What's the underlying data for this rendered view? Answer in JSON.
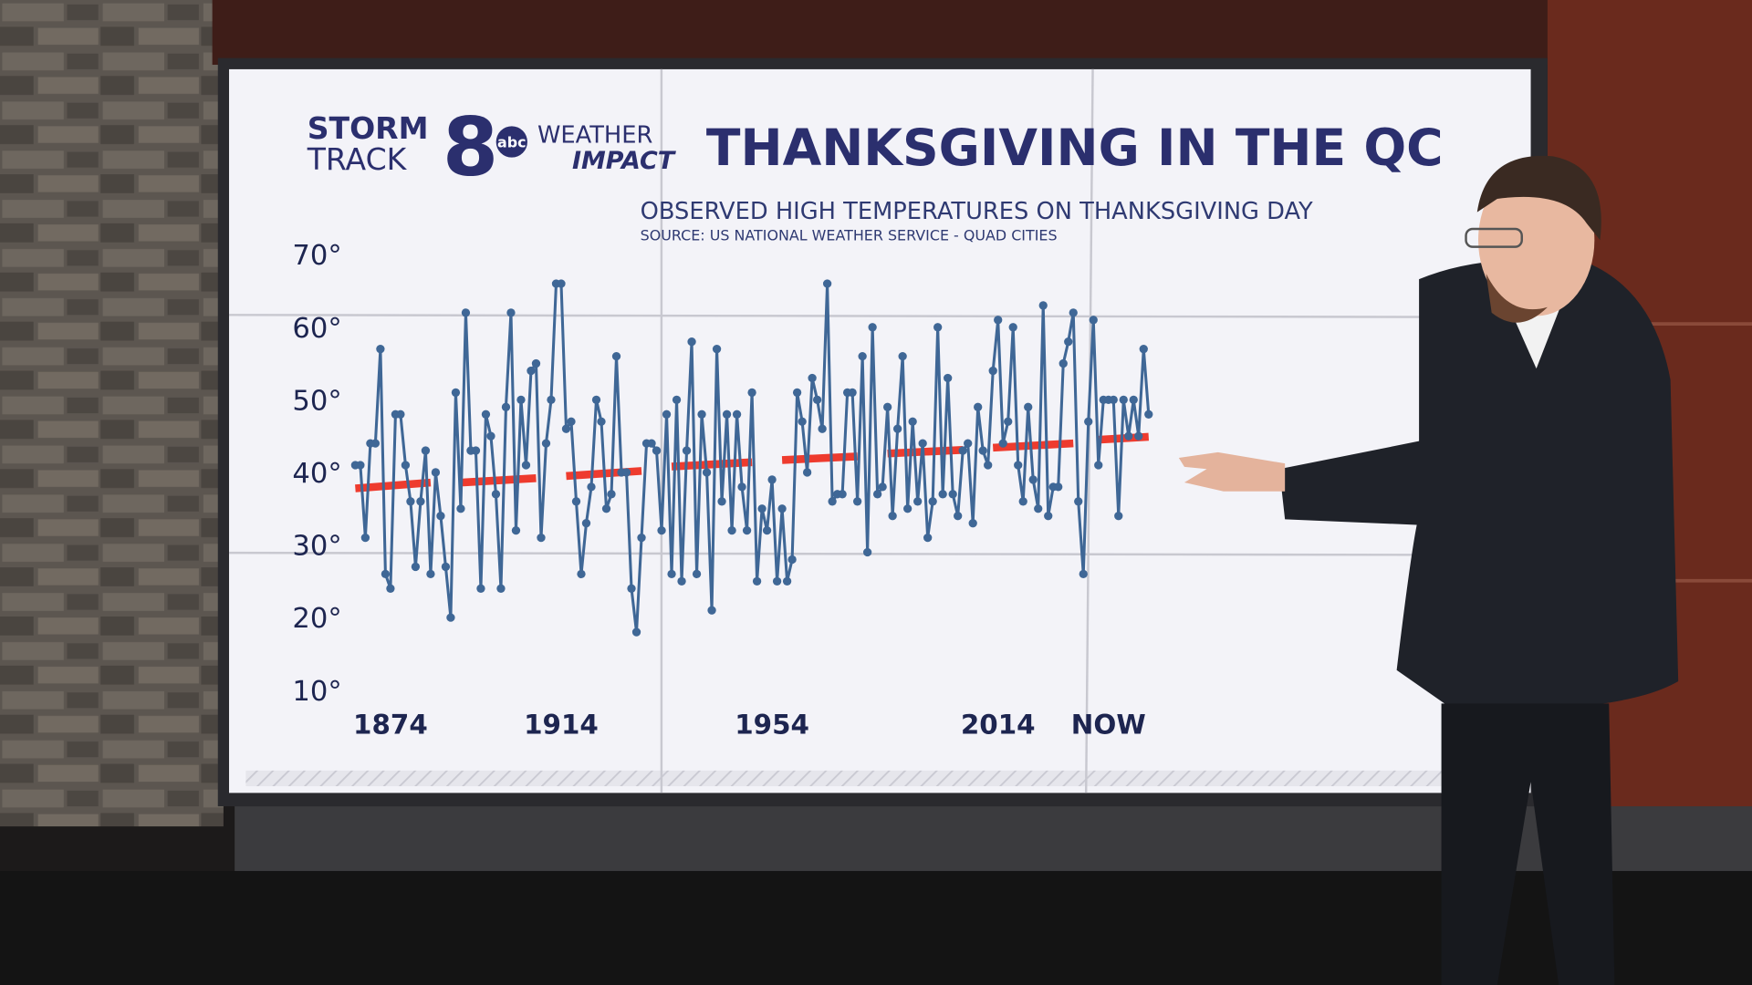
{
  "logo": {
    "storm": "STORM",
    "track": "TRACK",
    "eight": "8",
    "network": "abc",
    "weather": "WEATHER",
    "impact": "IMPACT"
  },
  "chart_data": {
    "type": "line",
    "title": "THANKSGIVING IN THE QC",
    "subtitle": "OBSERVED HIGH TEMPERATURES ON THANKSGIVING DAY",
    "source": "SOURCE: US NATIONAL WEATHER SERVICE - QUAD CITIES",
    "categories": [
      null,
      null,
      null,
      null,
      null,
      null,
      null,
      "1874",
      null,
      null,
      null,
      null,
      null,
      null,
      null,
      null,
      null,
      null,
      null,
      null,
      null,
      null,
      null,
      null,
      null,
      null,
      null,
      null,
      null,
      null,
      null,
      null,
      null,
      null,
      null,
      null,
      null,
      null,
      null,
      null,
      null,
      "1914",
      null,
      null,
      null,
      null,
      null,
      null,
      null,
      null,
      null,
      null,
      null,
      null,
      null,
      null,
      null,
      null,
      null,
      null,
      null,
      null,
      null,
      null,
      null,
      null,
      null,
      null,
      null,
      null,
      null,
      null,
      null,
      null,
      null,
      null,
      null,
      null,
      null,
      null,
      null,
      null,
      null,
      "1954",
      null,
      null,
      null,
      null,
      null,
      null,
      null,
      null,
      null,
      null,
      null,
      null,
      null,
      null,
      null,
      null,
      null,
      null,
      null,
      null,
      null,
      null,
      null,
      null,
      null,
      null,
      null,
      null,
      null,
      null,
      null,
      null,
      null,
      null,
      null,
      null,
      null,
      null,
      null,
      null,
      null,
      null,
      null,
      null,
      "2014",
      null,
      null,
      null,
      null,
      null,
      null,
      null,
      null,
      null,
      null,
      null,
      null,
      null,
      null,
      null,
      null,
      null,
      null,
      null,
      null,
      null,
      "NOW",
      null,
      null,
      null,
      null,
      null,
      null,
      null,
      null
    ],
    "values": [
      41,
      41,
      31,
      44,
      44,
      57,
      26,
      24,
      48,
      48,
      41,
      36,
      27,
      36,
      43,
      26,
      40,
      34,
      27,
      20,
      51,
      35,
      62,
      43,
      43,
      24,
      48,
      45,
      37,
      24,
      49,
      62,
      32,
      50,
      41,
      54,
      55,
      31,
      44,
      50,
      66,
      66,
      46,
      47,
      36,
      26,
      33,
      38,
      50,
      47,
      35,
      37,
      56,
      40,
      40,
      24,
      18,
      31,
      44,
      44,
      43,
      32,
      48,
      26,
      50,
      25,
      43,
      58,
      26,
      48,
      40,
      21,
      57,
      36,
      48,
      32,
      48,
      38,
      32,
      51,
      25,
      35,
      32,
      39,
      25,
      35,
      25,
      28,
      51,
      47,
      40,
      53,
      50,
      46,
      66,
      36,
      37,
      37,
      51,
      51,
      36,
      56,
      29,
      60,
      37,
      38,
      49,
      34,
      46,
      56,
      35,
      47,
      36,
      44,
      31,
      36,
      60,
      37,
      53,
      37,
      34,
      43,
      44,
      33,
      49,
      43,
      41,
      54,
      61,
      44,
      47,
      60,
      41,
      36,
      49,
      39,
      35,
      63,
      34,
      38,
      38,
      55,
      58,
      62,
      36,
      26,
      47,
      61,
      41,
      50,
      50,
      50,
      34,
      50,
      45,
      50,
      45,
      57,
      48
    ],
    "color": "#3f6796",
    "trend_color": "#ee3b2e",
    "trend": [
      {
        "x": [
          0,
          15
        ],
        "values": [
          37.8,
          38.6
        ]
      },
      {
        "x": [
          21,
          36
        ],
        "values": [
          38.6,
          39.2
        ]
      },
      {
        "x": [
          42,
          57
        ],
        "values": [
          39.5,
          40.2
        ]
      },
      {
        "x": [
          63,
          79
        ],
        "values": [
          40.8,
          41.4
        ]
      },
      {
        "x": [
          85,
          100
        ],
        "values": [
          41.7,
          42.2
        ]
      },
      {
        "x": [
          106,
          121
        ],
        "values": [
          42.6,
          43.1
        ]
      },
      {
        "x": [
          127,
          143
        ],
        "values": [
          43.4,
          44
        ]
      },
      {
        "x": [
          148,
          158
        ],
        "values": [
          44.5,
          44.9
        ]
      }
    ],
    "ylim": [
      10,
      70
    ],
    "yticks": [
      {
        "value": 70,
        "label": "70°"
      },
      {
        "value": 60,
        "label": "60°"
      },
      {
        "value": 50,
        "label": "50°"
      },
      {
        "value": 40,
        "label": "40°"
      },
      {
        "value": 30,
        "label": "30°"
      },
      {
        "value": 20,
        "label": "20°"
      },
      {
        "value": 10,
        "label": "10°"
      }
    ],
    "grid": false
  }
}
